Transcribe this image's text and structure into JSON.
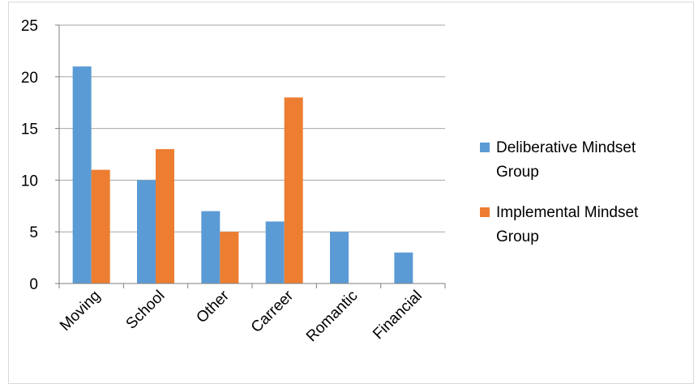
{
  "chart_data": {
    "type": "bar",
    "title": "",
    "xlabel": "",
    "ylabel": "",
    "categories": [
      "Moving",
      "School",
      "Other",
      "Carreer",
      "Romantic",
      "Financial"
    ],
    "series": [
      {
        "name": "Deliberative Mindset Group",
        "legend_lines": [
          "Deliberative Mindset",
          "Group"
        ],
        "color": "#5b9bd5",
        "values": [
          21,
          10,
          7,
          6,
          5,
          3
        ]
      },
      {
        "name": "Implemental Mindset Group",
        "legend_lines": [
          "Implemental Mindset",
          "Group"
        ],
        "color": "#ed7d31",
        "values": [
          11,
          13,
          5,
          18,
          null,
          null
        ]
      }
    ],
    "ylim": [
      0,
      25
    ],
    "yticks": [
      0,
      5,
      10,
      15,
      20,
      25
    ],
    "grid": true,
    "legend_position": "right"
  }
}
